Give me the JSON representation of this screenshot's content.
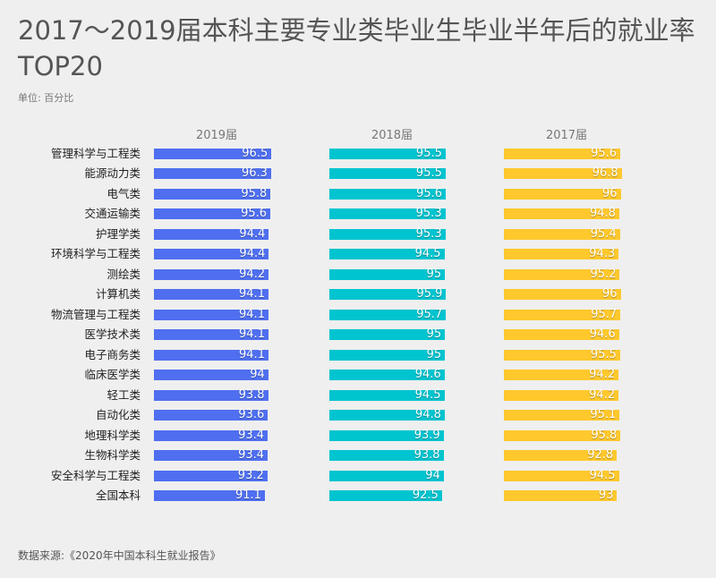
{
  "title": "2017～2019届本科主要专业类毕业生毕业半年后的就业率TOP20",
  "unit": "单位: 百分比",
  "source": "数据来源:《2020年中国本科生就业报告》",
  "chart_data": {
    "type": "bar",
    "orientation": "horizontal",
    "title": "2017～2019届本科主要专业类毕业生毕业半年后的就业率TOP20",
    "ylabel": "单位: 百分比",
    "categories": [
      "管理科学与工程类",
      "能源动力类",
      "电气类",
      "交通运输类",
      "护理学类",
      "环境科学与工程类",
      "测绘类",
      "计算机类",
      "物流管理与工程类",
      "医学技术类",
      "电子商务类",
      "临床医学类",
      "轻工类",
      "自动化类",
      "地理科学类",
      "生物科学类",
      "安全科学与工程类",
      "全国本科"
    ],
    "series": [
      {
        "name": "2019届",
        "color": "#4f6ff0",
        "values": [
          96.5,
          96.3,
          95.8,
          95.6,
          94.4,
          94.4,
          94.2,
          94.1,
          94.1,
          94.1,
          94.1,
          94,
          93.8,
          93.6,
          93.4,
          93.4,
          93.2,
          91.1
        ]
      },
      {
        "name": "2018届",
        "color": "#00c4cf",
        "values": [
          95.5,
          95.5,
          95.6,
          95.3,
          95.3,
          94.5,
          95,
          95.9,
          95.7,
          95,
          95,
          94.6,
          94.5,
          94.8,
          93.9,
          93.8,
          94,
          92.5
        ]
      },
      {
        "name": "2017届",
        "color": "#ffc82c",
        "values": [
          95.6,
          96.8,
          96,
          94.8,
          95.4,
          94.3,
          95.2,
          96,
          95.7,
          94.6,
          95.5,
          94.2,
          94.2,
          95.1,
          95.8,
          92.8,
          94.5,
          93
        ]
      }
    ],
    "grid": false,
    "legend": "column-headers"
  }
}
